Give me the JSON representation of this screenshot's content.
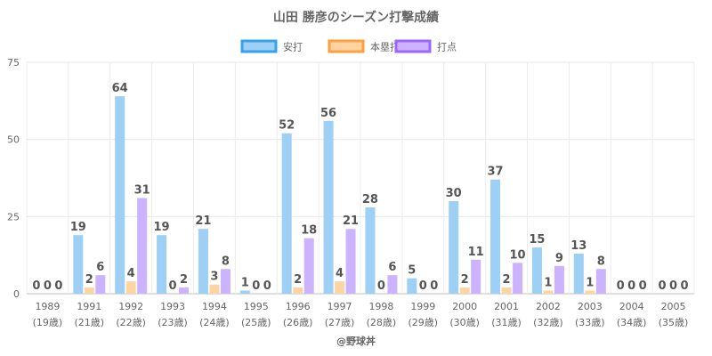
{
  "chart_data": {
    "type": "bar",
    "title": "山田 勝彦のシーズン打撃成績",
    "credit": "@野球丼",
    "categories": [
      "1989",
      "1991",
      "1992",
      "1993",
      "1994",
      "1995",
      "1996",
      "1997",
      "1998",
      "1999",
      "2000",
      "2001",
      "2002",
      "2003",
      "2004",
      "2005"
    ],
    "category_sublabels": [
      "(19歳)",
      "(21歳)",
      "(22歳)",
      "(23歳)",
      "(24歳)",
      "(25歳)",
      "(26歳)",
      "(27歳)",
      "(28歳)",
      "(29歳)",
      "(30歳)",
      "(31歳)",
      "(32歳)",
      "(33歳)",
      "(34歳)",
      "(35歳)"
    ],
    "series": [
      {
        "name": "安打",
        "color": "#9ecff4",
        "border": "#36a2eb",
        "values": [
          0,
          19,
          64,
          19,
          21,
          1,
          52,
          56,
          28,
          5,
          30,
          37,
          15,
          13,
          0,
          0
        ]
      },
      {
        "name": "本塁打",
        "color": "#ffd4a3",
        "border": "#ff9f40",
        "values": [
          0,
          2,
          4,
          0,
          3,
          0,
          2,
          4,
          0,
          0,
          2,
          2,
          1,
          1,
          0,
          0
        ]
      },
      {
        "name": "打点",
        "color": "#ccb3ff",
        "border": "#9966ff",
        "values": [
          0,
          6,
          31,
          2,
          8,
          0,
          18,
          21,
          6,
          0,
          11,
          10,
          9,
          8,
          0,
          0
        ]
      }
    ],
    "ylim": [
      0,
      75
    ],
    "yticks": [
      0,
      25,
      50,
      75
    ],
    "grid": true,
    "legend_position": "top-center",
    "data_labels": true
  }
}
